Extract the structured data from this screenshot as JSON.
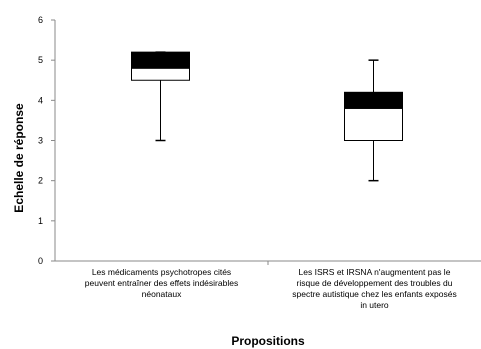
{
  "chart_data": {
    "type": "box",
    "title": "",
    "xlabel": "Propositions",
    "ylabel": "Echelle de réponse",
    "ylim": [
      0,
      6
    ],
    "yticks": [
      "0",
      "1",
      "2",
      "3",
      "4",
      "5",
      "6"
    ],
    "grid": false,
    "categories": [
      [
        "Les médicaments psychotropes cités",
        "peuvent entraîner des effets indésirables",
        "néonataux"
      ],
      [
        "Les ISRS et IRSNA n'augmentent pas le",
        "risque de développement des troubles du",
        "spectre autistique chez les enfants exposés",
        "in utero"
      ]
    ],
    "boxes": [
      {
        "min": 3,
        "q1": 4.5,
        "median": 4.8,
        "q3": 5.2,
        "max": 5.2
      },
      {
        "min": 2,
        "q1": 3.0,
        "median": 3.8,
        "q3": 4.2,
        "max": 5
      }
    ],
    "colors": {
      "upper_box": "#000000",
      "lower_box": "#ffffff",
      "stroke": "#000000"
    }
  }
}
